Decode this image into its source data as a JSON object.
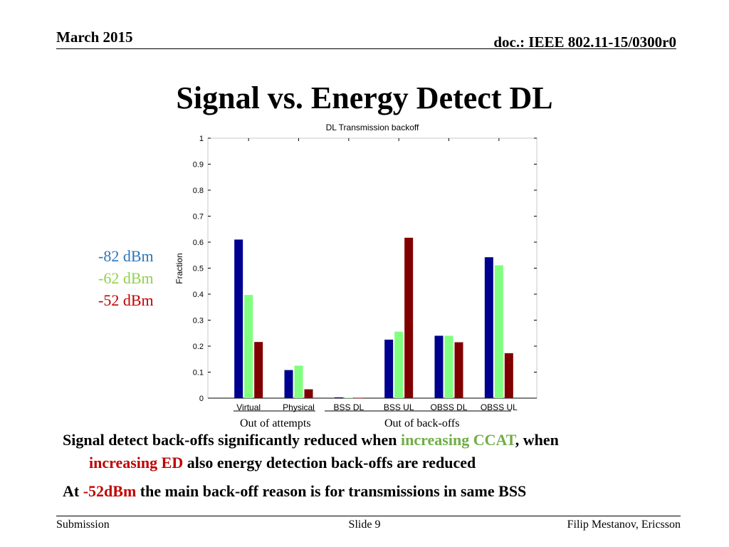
{
  "header": {
    "date": "March 2015",
    "doc_id": "doc.: IEEE 802.11-15/0300r0"
  },
  "slide": {
    "title": "Signal vs. Energy Detect DL"
  },
  "legend": [
    {
      "label": "-82 dBm",
      "color": "#2e75b6"
    },
    {
      "label": "-62 dBm",
      "color": "#92d050"
    },
    {
      "label": "-52 dBm",
      "color": "#c00000"
    }
  ],
  "group_notes": {
    "left": "Out of attempts",
    "right": "Out of back-offs"
  },
  "chart_data": {
    "type": "bar",
    "title": "DL Transmission backoff",
    "xlabel": "",
    "ylabel": "Fraction",
    "ylim": [
      0,
      1
    ],
    "yticks": [
      "0",
      "0.1",
      "0.2",
      "0.3",
      "0.4",
      "0.5",
      "0.6",
      "0.7",
      "0.8",
      "0.9",
      "1"
    ],
    "categories": [
      "Virtual",
      "Physical",
      "BSS DL",
      "BSS UL",
      "OBSS DL",
      "OBSS UL"
    ],
    "series": [
      {
        "values": [
          0.61,
          0.108,
          0.003,
          0.225,
          0.24,
          0.542
        ],
        "color": "#00008f"
      },
      {
        "values": [
          0.397,
          0.125,
          0.002,
          0.256,
          0.24,
          0.511
        ],
        "color": "#80ff80"
      },
      {
        "values": [
          0.216,
          0.034,
          0.001,
          0.617,
          0.215,
          0.173
        ],
        "color": "#800000"
      }
    ],
    "grid": false
  },
  "body": {
    "line1_pre": "Signal detect back-offs significantly reduced when ",
    "line1_highlight": "increasing CCAT",
    "line1_post": ", when",
    "line2_highlight": "increasing ED",
    "line2_post": " also energy detection back-offs are reduced",
    "line3_pre": "At ",
    "line3_highlight": "-52dBm",
    "line3_post": " the main back-off reason is for transmissions in same BSS",
    "green": "#70ad47",
    "red": "#c00000"
  },
  "footer": {
    "left": "Submission",
    "center": "Slide 9",
    "right": "Filip Mestanov, Ericsson"
  }
}
